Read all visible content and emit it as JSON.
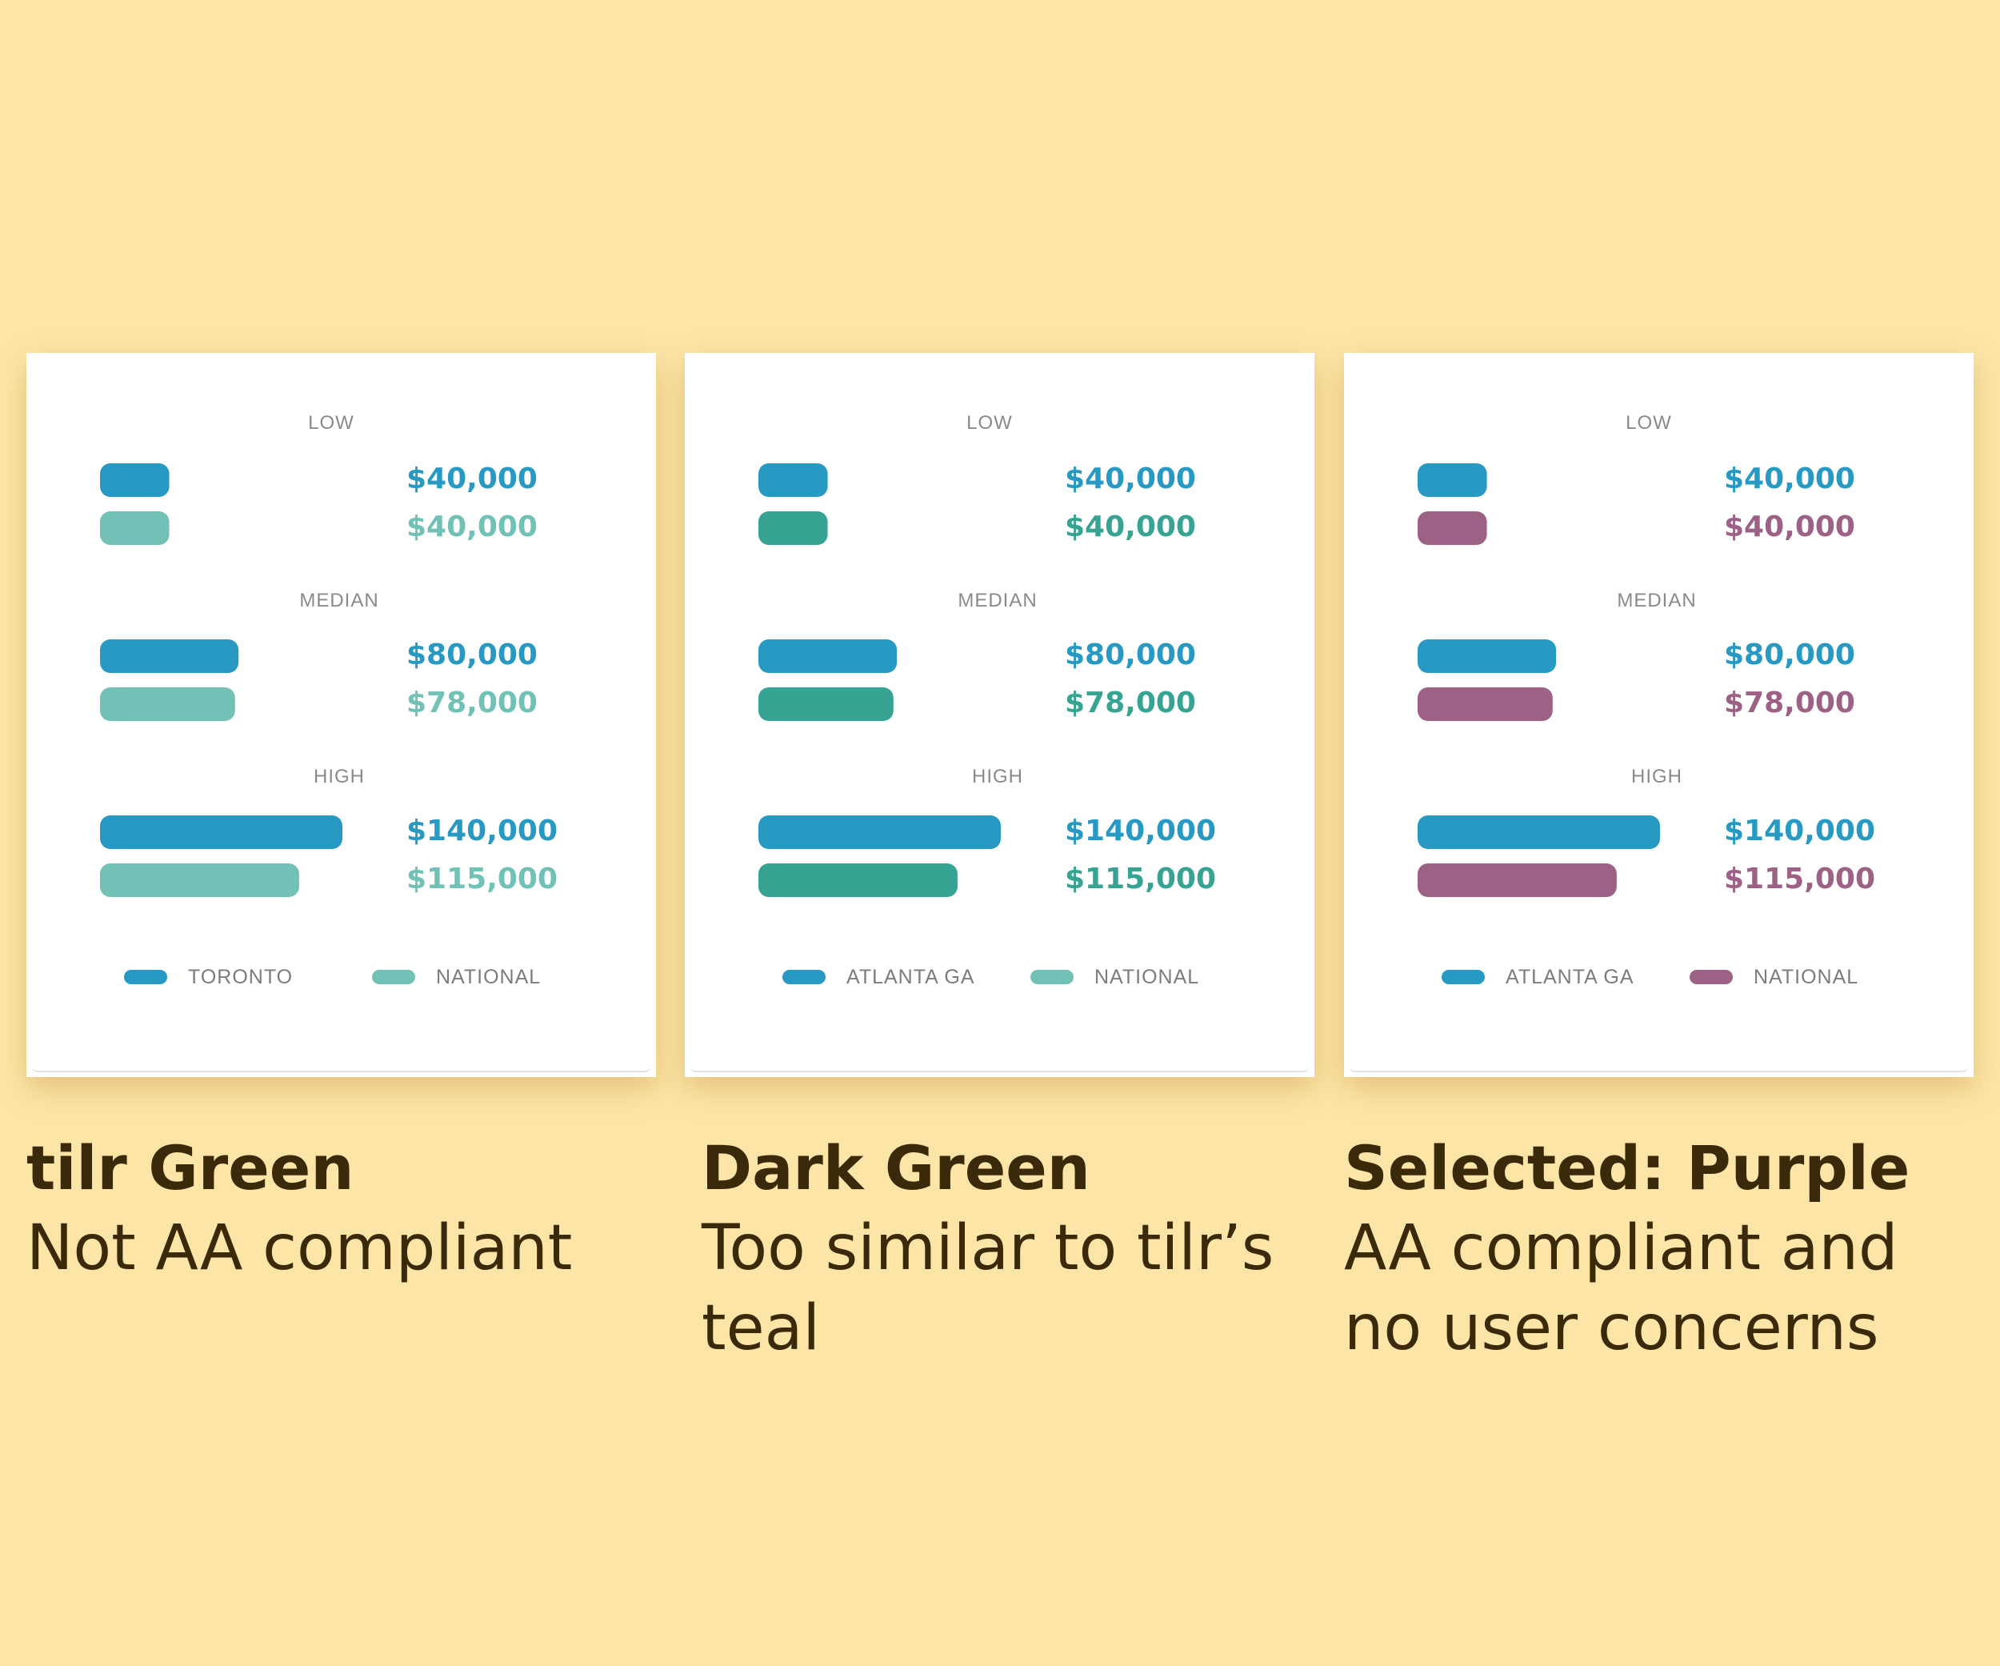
{
  "chart_data": [
    {
      "type": "bar",
      "orientation": "horizontal",
      "categories": [
        "LOW",
        "MEDIAN",
        "HIGH"
      ],
      "series": [
        {
          "name": "TORONTO",
          "values": [
            40000,
            80000,
            140000
          ],
          "labels": [
            "$40,000",
            "$80,000",
            "$140,000"
          ],
          "color": "#2899c3"
        },
        {
          "name": "NATIONAL",
          "values": [
            40000,
            78000,
            115000
          ],
          "labels": [
            "$40,000",
            "$78,000",
            "$115,000"
          ],
          "color": "#72c1b6"
        }
      ],
      "xlim": [
        0,
        140000
      ],
      "legend": "bottom",
      "caption": {
        "title": "tilr Green",
        "subtitle": "Not AA compliant"
      }
    },
    {
      "type": "bar",
      "orientation": "horizontal",
      "categories": [
        "LOW",
        "MEDIAN",
        "HIGH"
      ],
      "series": [
        {
          "name": "ATLANTA GA",
          "values": [
            40000,
            80000,
            140000
          ],
          "labels": [
            "$40,000",
            "$80,000",
            "$140,000"
          ],
          "color": "#2899c3"
        },
        {
          "name": "NATIONAL",
          "values": [
            40000,
            78000,
            115000
          ],
          "labels": [
            "$40,000",
            "$78,000",
            "$115,000"
          ],
          "color": "#37a393",
          "legend_color": "#72c1b6"
        }
      ],
      "xlim": [
        0,
        140000
      ],
      "legend": "bottom",
      "caption": {
        "title": "Dark Green",
        "subtitle": "Too similar to tilr’s teal"
      }
    },
    {
      "type": "bar",
      "orientation": "horizontal",
      "categories": [
        "LOW",
        "MEDIAN",
        "HIGH"
      ],
      "series": [
        {
          "name": "ATLANTA GA",
          "values": [
            40000,
            80000,
            140000
          ],
          "labels": [
            "$40,000",
            "$80,000",
            "$140,000"
          ],
          "color": "#2899c3"
        },
        {
          "name": "NATIONAL",
          "values": [
            40000,
            78000,
            115000
          ],
          "labels": [
            "$40,000",
            "$78,000",
            "$115,000"
          ],
          "color": "#9c6184"
        }
      ],
      "xlim": [
        0,
        140000
      ],
      "legend": "bottom",
      "caption": {
        "title": "Selected: Purple",
        "subtitle": "AA compliant and no user concerns"
      }
    }
  ]
}
